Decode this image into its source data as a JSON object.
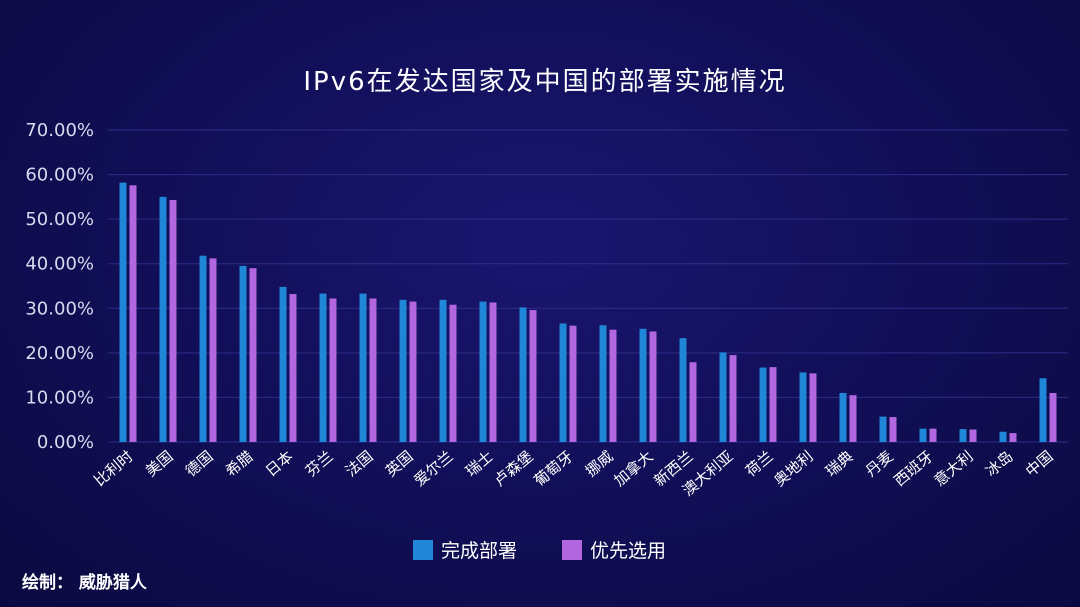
{
  "chart_data": {
    "type": "bar",
    "title": "IPv6在发达国家及中国的部署实施情况",
    "categories": [
      "比利时",
      "美国",
      "德国",
      "希腊",
      "日本",
      "芬兰",
      "法国",
      "英国",
      "爱尔兰",
      "瑞士",
      "卢森堡",
      "葡萄牙",
      "挪威",
      "加拿大",
      "新西兰",
      "澳大利亚",
      "荷兰",
      "奥地利",
      "瑞典",
      "丹麦",
      "西班牙",
      "意大利",
      "冰岛",
      "中国"
    ],
    "series": [
      {
        "name": "完成部署",
        "color": "#1f86d8",
        "values": [
          58.2,
          55.0,
          41.8,
          39.5,
          34.8,
          33.3,
          33.3,
          31.9,
          31.9,
          31.5,
          30.2,
          26.6,
          26.2,
          25.4,
          23.3,
          20.1,
          16.7,
          15.6,
          11.0,
          5.7,
          3.0,
          2.9,
          2.3,
          14.3
        ]
      },
      {
        "name": "优先选用",
        "color": "#b266e0",
        "values": [
          57.6,
          54.3,
          41.2,
          39.0,
          33.2,
          32.2,
          32.2,
          31.5,
          30.8,
          31.3,
          29.6,
          26.1,
          25.2,
          24.8,
          17.9,
          19.5,
          16.8,
          15.4,
          10.5,
          5.6,
          3.0,
          2.8,
          2.0,
          11.0
        ]
      }
    ],
    "y_ticks": [
      "0.00%",
      "10.00%",
      "20.00%",
      "30.00%",
      "40.00%",
      "50.00%",
      "60.00%",
      "70.00%"
    ],
    "ylim": [
      0,
      70
    ],
    "grid": true,
    "legend_position": "bottom"
  },
  "credit": "绘制： 威胁猎人"
}
